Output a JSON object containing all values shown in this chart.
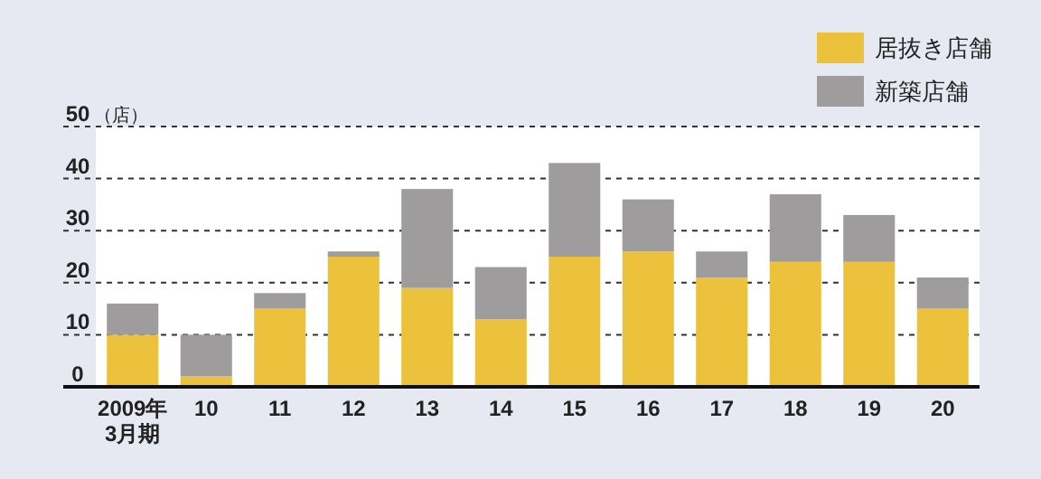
{
  "chart_data": {
    "type": "bar",
    "stacked": true,
    "ylabel": "（店）",
    "categories": [
      "2009年\n3月期",
      "10",
      "11",
      "12",
      "13",
      "14",
      "15",
      "16",
      "17",
      "18",
      "19",
      "20"
    ],
    "series": [
      {
        "name": "居抜き店舗",
        "color": "#ecc23c",
        "values": [
          10,
          2,
          15,
          25,
          19,
          13,
          25,
          26,
          21,
          24,
          24,
          15
        ]
      },
      {
        "name": "新築店舗",
        "color": "#9e9c9c",
        "values": [
          6,
          8,
          3,
          1,
          19,
          10,
          18,
          10,
          5,
          13,
          9,
          6
        ]
      }
    ],
    "ylim": [
      0,
      50
    ],
    "yticks": [
      0,
      10,
      20,
      30,
      40,
      50
    ],
    "grid": "y",
    "legend": "top right"
  }
}
